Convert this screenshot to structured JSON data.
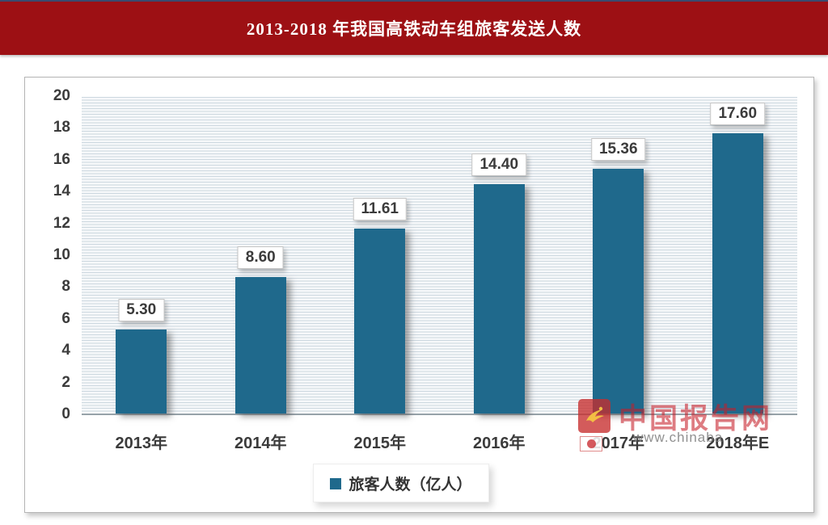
{
  "title": "2013-2018 年我国高铁动车组旅客发送人数",
  "chart_data": {
    "type": "bar",
    "title": "2013-2018 年我国高铁动车组旅客发送人数",
    "categories": [
      "2013年",
      "2014年",
      "2015年",
      "2016年",
      "2017年",
      "2018年E"
    ],
    "series": [
      {
        "name": "旅客人数（亿人）",
        "values": [
          5.3,
          8.6,
          11.61,
          14.4,
          15.36,
          17.6
        ],
        "value_labels": [
          "5.30",
          "8.60",
          "11.61",
          "14.40",
          "15.36",
          "17.60"
        ]
      }
    ],
    "xlabel": "",
    "ylabel": "",
    "ylim": [
      0,
      20
    ],
    "ytick_step": 2,
    "ytick_labels": [
      "0",
      "2",
      "4",
      "6",
      "8",
      "10",
      "12",
      "14",
      "16",
      "18",
      "20"
    ],
    "grid": "fine-horizontal-stripes",
    "legend_position": "bottom-center",
    "bar_color": "#1F698C"
  },
  "watermark": {
    "brand": "中国报告网",
    "url_text": "www.chinaba",
    "brand_color": "#C61E28"
  },
  "colors": {
    "banner_bg": "#9D1014",
    "banner_top_border": "#3A4A6E",
    "bar": "#1F698C",
    "plot_stripe": "#CCD7DF",
    "axis_text": "#3B3B3B",
    "baseline": "#97A2A9"
  }
}
